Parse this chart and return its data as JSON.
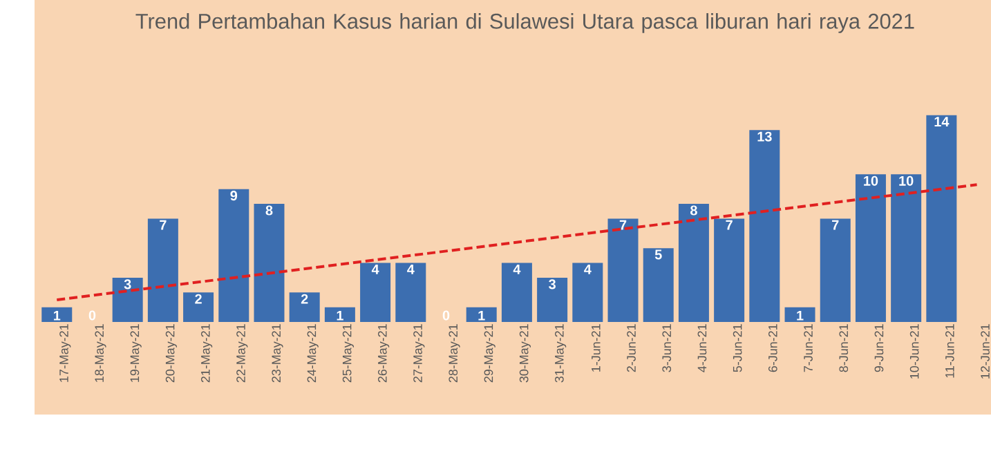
{
  "chart_data": {
    "type": "bar",
    "title": "Trend Pertambahan Kasus harian di Sulawesi Utara pasca liburan hari raya 2021",
    "categories": [
      "17-May-21",
      "18-May-21",
      "19-May-21",
      "20-May-21",
      "21-May-21",
      "22-May-21",
      "23-May-21",
      "24-May-21",
      "25-May-21",
      "26-May-21",
      "27-May-21",
      "28-May-21",
      "29-May-21",
      "30-May-21",
      "31-May-21",
      "1-Jun-21",
      "2-Jun-21",
      "3-Jun-21",
      "4-Jun-21",
      "5-Jun-21",
      "6-Jun-21",
      "7-Jun-21",
      "8-Jun-21",
      "9-Jun-21",
      "10-Jun-21",
      "11-Jun-21",
      "12-Jun-21"
    ],
    "series": [
      {
        "color": "#3c6eb0",
        "values": [
          1,
          0,
          3,
          7,
          2,
          9,
          8,
          2,
          1,
          4,
          4,
          0,
          1,
          4,
          3,
          4,
          7,
          5,
          8,
          7,
          13,
          1,
          7,
          10,
          10,
          14,
          null
        ],
        "value_labels": [
          "1",
          "0",
          "3",
          "7",
          "2",
          "9",
          "8",
          "2",
          "1",
          "4",
          "4",
          "0",
          "1",
          "4",
          "3",
          "4",
          "7",
          "5",
          "8",
          "7",
          "13",
          "1",
          "7",
          "10",
          "10",
          "14",
          null
        ]
      },
      {
        "type": "line",
        "color": "#e02020",
        "line_style": "dashed",
        "marker": "none",
        "x": [
          "17-May-21",
          "12-Jun-21"
        ],
        "values": [
          1.5,
          9.3
        ]
      }
    ]
  }
}
